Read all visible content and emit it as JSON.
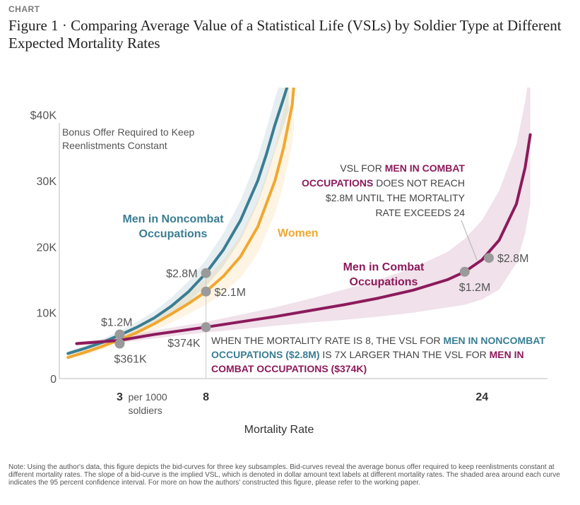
{
  "header": {
    "kicker": "CHART",
    "title": "Figure 1 · Comparing Average Value of a Statistical Life (VSLs) by Soldier Type at Different Expected Mortality Rates"
  },
  "note": "Note: Using the author's data, this figure depicts the bid-curves for three key subsamples. Bid-curves reveal the average bonus offer required to keep reenlistments constant at different mortality rates. The slope of a bid-curve is the implied VSL, which is denoted in dollar amount text labels at different mortality rates. The shaded area around each curve indicates the 95 percent confidence interval. For more on how the authors' constructed this figure, please refer to the working paper.",
  "colors": {
    "noncombat": "#3a7d91",
    "women": "#f0a830",
    "combat": "#8c1a5b",
    "marker": "#9a9a9a",
    "axis": "#bbbbbb"
  },
  "chart_data": {
    "type": "line",
    "xlabel": "Mortality Rate",
    "ylabel_line1": "Bonus Offer Required to Keep",
    "ylabel_line2": "Reenlistments Constant",
    "x_ticks": [
      {
        "value": 3,
        "label": "3",
        "suffix_line1": "per 1000",
        "suffix_line2": "soldiers"
      },
      {
        "value": 8,
        "label": "8"
      },
      {
        "value": 24,
        "label": "24"
      }
    ],
    "y_ticks": [
      {
        "value": 0,
        "label": "0"
      },
      {
        "value": 10000,
        "label": "10K"
      },
      {
        "value": 20000,
        "label": "20K"
      },
      {
        "value": 30000,
        "label": "30K"
      },
      {
        "value": 40000,
        "label": "$40K"
      }
    ],
    "xlim": [
      -0.5,
      27.8
    ],
    "ylim": [
      0,
      42000
    ],
    "series": [
      {
        "key": "noncombat",
        "name_line1": "Men in Noncombat",
        "name_line2": "Occupations",
        "x": [
          0,
          1,
          2,
          3,
          4,
          5,
          6,
          7,
          8,
          9,
          10,
          11,
          11.5,
          12,
          12.5,
          12.8
        ],
        "y": [
          3800,
          4600,
          5500,
          6600,
          7800,
          9200,
          11000,
          13200,
          16000,
          19500,
          24000,
          30000,
          34000,
          38500,
          42500,
          45000
        ],
        "ci_half": [
          300,
          400,
          500,
          600,
          800,
          1000,
          1300,
          1600,
          2000,
          2500,
          3000,
          3500,
          3800,
          4000,
          4200,
          4300
        ]
      },
      {
        "key": "women",
        "name_line1": "Women",
        "name_line2": "",
        "x": [
          0,
          1,
          2,
          3,
          4,
          5,
          6,
          7,
          8,
          9,
          10,
          11,
          12,
          12.5,
          13,
          13.1
        ],
        "y": [
          3200,
          4000,
          4900,
          5900,
          7000,
          8300,
          9800,
          11400,
          13200,
          15500,
          18500,
          23000,
          30000,
          35000,
          41500,
          44500
        ],
        "ci_half": [
          300,
          400,
          500,
          600,
          800,
          1000,
          1300,
          1600,
          2000,
          2500,
          3200,
          4000,
          5000,
          5500,
          6000,
          6200
        ]
      },
      {
        "key": "combat",
        "name_line1": "Men in Combat",
        "name_line2": "Occupations",
        "x": [
          0.5,
          3,
          5,
          8,
          10,
          12,
          14,
          16,
          18,
          20,
          22,
          23,
          24,
          25,
          26,
          26.5,
          26.8
        ],
        "y": [
          5300,
          5800,
          6700,
          7800,
          8600,
          9400,
          10300,
          11200,
          12200,
          13400,
          15000,
          16200,
          18000,
          21000,
          26500,
          32000,
          37000
        ],
        "ci_half": [
          300,
          400,
          600,
          800,
          1100,
          1400,
          1800,
          2300,
          2800,
          3400,
          4200,
          5000,
          6000,
          7500,
          9000,
          10000,
          10500
        ]
      }
    ],
    "markers": [
      {
        "series": "noncombat",
        "x": 3,
        "y": 6700,
        "label": "$1.2M",
        "anchor": "left-above"
      },
      {
        "series": "combat",
        "x": 3,
        "y": 5300,
        "label": "$361K",
        "anchor": "right-below"
      },
      {
        "series": "noncombat",
        "x": 8,
        "y": 16000,
        "label": "$2.8M",
        "anchor": "left"
      },
      {
        "series": "women",
        "x": 8,
        "y": 13200,
        "label": "$2.1M",
        "anchor": "right"
      },
      {
        "series": "combat",
        "x": 8,
        "y": 7800,
        "label": "$374K",
        "anchor": "left-below"
      },
      {
        "series": "combat",
        "x": 23,
        "y": 16200,
        "label": "$1.2M",
        "anchor": "right-below"
      },
      {
        "series": "combat",
        "x": 24.4,
        "y": 18300,
        "label": "$2.8M",
        "anchor": "right"
      }
    ],
    "annotations": {
      "top_right": {
        "lines": [
          [
            {
              "t": "VSL FOR ",
              "hl": false
            },
            {
              "t": "MEN IN COMBAT",
              "hl": true
            }
          ],
          [
            {
              "t": "OCCUPATIONS",
              "hl": true
            },
            {
              "t": " DOES NOT REACH",
              "hl": false
            }
          ],
          [
            {
              "t": "$2.8M UNTIL THE MORTALITY",
              "hl": false
            }
          ],
          [
            {
              "t": "RATE EXCEEDS 24",
              "hl": false
            }
          ]
        ]
      },
      "bottom": {
        "lines": [
          [
            {
              "t": "WHEN THE MORTALITY RATE IS 8, THE VSL FOR ",
              "c": ""
            },
            {
              "t": "MEN IN NONCOMBAT",
              "c": "noncombat"
            }
          ],
          [
            {
              "t": "OCCUPATIONS ($2.8M)",
              "c": "noncombat"
            },
            {
              "t": " IS 7X LARGER THAN THE VSL FOR ",
              "c": ""
            },
            {
              "t": "MEN IN",
              "c": "combat"
            }
          ],
          [
            {
              "t": "COMBAT OCCUPATIONS ($374K)",
              "c": "combat"
            }
          ]
        ]
      }
    }
  }
}
